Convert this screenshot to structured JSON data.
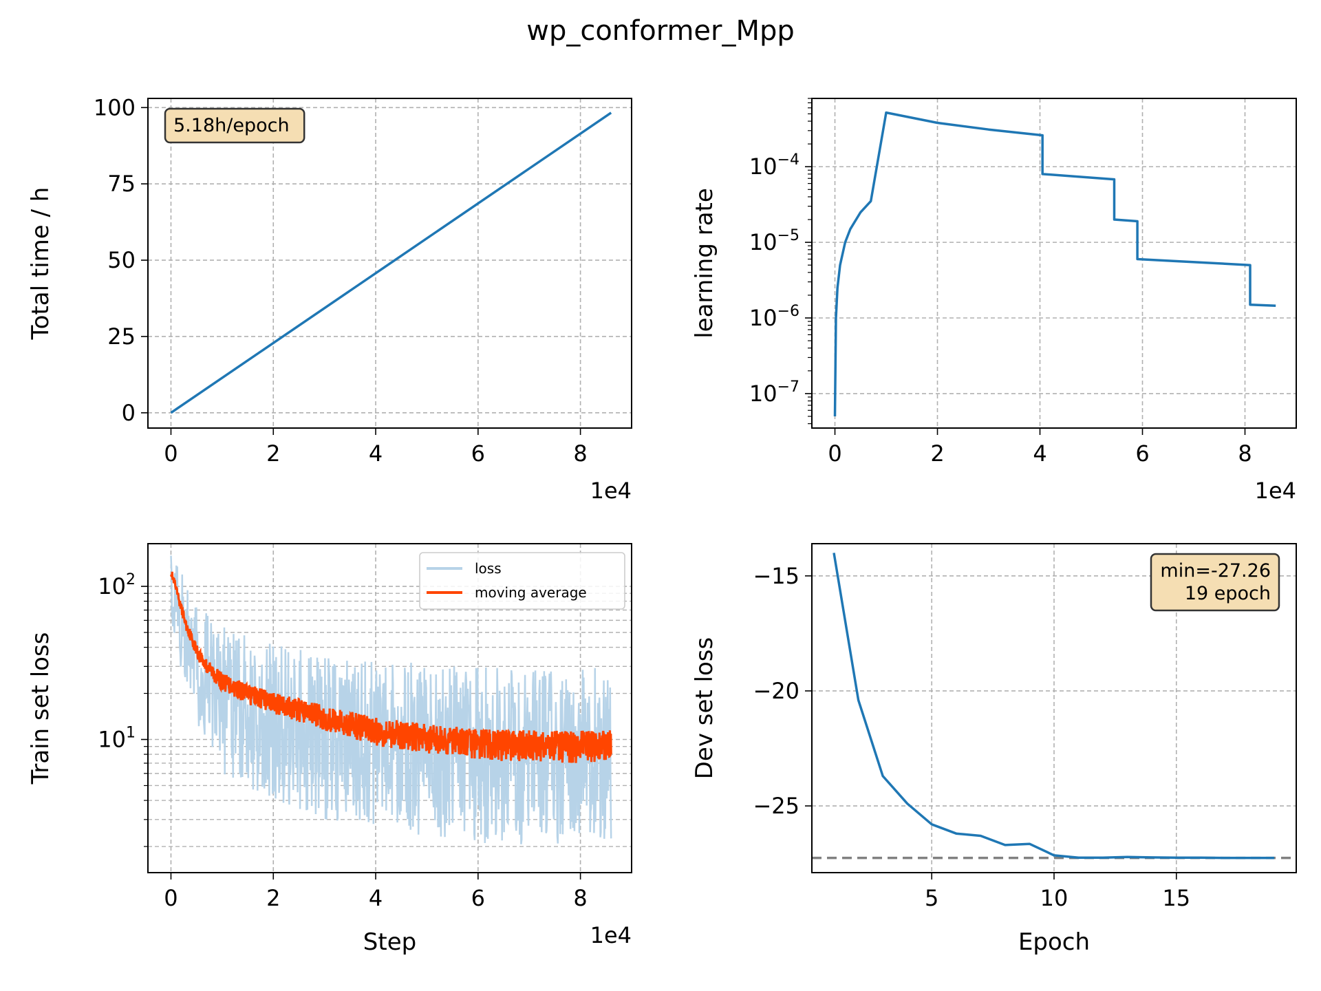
{
  "figure": {
    "title": "wp_conformer_Mpp"
  },
  "colors": {
    "line": "#1f77b4",
    "loss_raw": "#b7d3e8",
    "moving_average": "#ff4500",
    "annotation_bg": "#f5deb3",
    "grid": "#b0b0b0",
    "min_line": "#808080"
  },
  "chart_data": [
    {
      "id": "total-time",
      "type": "line",
      "xlabel": "",
      "ylabel": "Total time / h",
      "x_multiplier_label": "1e4",
      "x_ticks": [
        0,
        2,
        4,
        6,
        8
      ],
      "y_ticks": [
        0,
        25,
        50,
        75,
        100
      ],
      "xlim": [
        -0.45,
        9.0
      ],
      "ylim": [
        -5,
        103
      ],
      "grid": true,
      "annotation": "5.18h/epoch",
      "annotation_position": "top-left",
      "series": [
        {
          "x": [
            0,
            8.6
          ],
          "y": [
            0,
            98.3
          ]
        }
      ]
    },
    {
      "id": "learning-rate",
      "type": "line",
      "scale_y": "log",
      "xlabel": "",
      "ylabel": "learning rate",
      "x_multiplier_label": "1e4",
      "x_ticks": [
        0,
        2,
        4,
        6,
        8
      ],
      "y_ticks": [
        {
          "value": 1e-07,
          "base": "10",
          "exp": "−7"
        },
        {
          "value": 1e-06,
          "base": "10",
          "exp": "−6"
        },
        {
          "value": 1e-05,
          "base": "10",
          "exp": "−5"
        },
        {
          "value": 0.0001,
          "base": "10",
          "exp": "−4"
        }
      ],
      "xlim": [
        -0.45,
        9.0
      ],
      "ylim": [
        3.5e-08,
        0.0008
      ],
      "grid": true,
      "series": [
        {
          "x": [
            0.0,
            0.02,
            0.05,
            0.1,
            0.2,
            0.3,
            0.5,
            0.7,
            1.0,
            2.0,
            3.0,
            4.05,
            4.05,
            5.45,
            5.45,
            5.9,
            5.9,
            8.1,
            8.1,
            8.6
          ],
          "y": [
            5e-08,
            1e-06,
            2.5e-06,
            5e-06,
            1e-05,
            1.5e-05,
            2.5e-05,
            3.5e-05,
            0.00052,
            0.00038,
            0.00031,
            0.00026,
            8e-05,
            6.8e-05,
            2e-05,
            1.9e-05,
            6e-06,
            5e-06,
            1.5e-06,
            1.45e-06
          ]
        }
      ]
    },
    {
      "id": "train-loss",
      "type": "line",
      "scale_y": "log",
      "xlabel": "Step",
      "ylabel": "Train set loss",
      "x_multiplier_label": "1e4",
      "x_ticks": [
        0,
        2,
        4,
        6,
        8
      ],
      "y_ticks": [
        {
          "value": 10,
          "base": "10",
          "exp": "1"
        },
        {
          "value": 100,
          "base": "10",
          "exp": "2"
        }
      ],
      "xlim": [
        -0.45,
        9.0
      ],
      "ylim": [
        1.35,
        190
      ],
      "grid": true,
      "legend_position": "top-right",
      "series": [
        {
          "name": "loss",
          "x": [
            0,
            0.2,
            0.5,
            1.0,
            2.0,
            3.0,
            4.0,
            5.0,
            6.0,
            7.0,
            8.0,
            8.6
          ],
          "upper": [
            160,
            130,
            75,
            55,
            42,
            36,
            33,
            32,
            31,
            30,
            30,
            30
          ],
          "lower": [
            60,
            28,
            12,
            6,
            3.8,
            3.0,
            2.6,
            2.3,
            2.1,
            2.0,
            2.0,
            2.2
          ]
        },
        {
          "name": "moving average",
          "x": [
            0,
            0.1,
            0.2,
            0.3,
            0.5,
            0.7,
            1.0,
            1.5,
            2.0,
            3.0,
            4.0,
            5.0,
            6.0,
            7.0,
            8.0,
            8.6
          ],
          "y": [
            125,
            95,
            72,
            55,
            38,
            30,
            24,
            20,
            17.5,
            14,
            11.5,
            10.3,
            9.5,
            9.3,
            9.2,
            9.3
          ],
          "noise": [
            8,
            6,
            5,
            4.5,
            4,
            3.6,
            3.2,
            3,
            2.8,
            2.6,
            2.4,
            2.3,
            2.2,
            2.2,
            2.2,
            2.2
          ]
        }
      ]
    },
    {
      "id": "dev-loss",
      "type": "line",
      "xlabel": "Epoch",
      "ylabel": "Dev set loss",
      "x_ticks": [
        5,
        10,
        15
      ],
      "y_ticks": [
        -25,
        -20,
        -15
      ],
      "y_tick_labels": [
        "−25",
        "−20",
        "−15"
      ],
      "xlim": [
        0.1,
        19.9
      ],
      "ylim": [
        -27.9,
        -13.6
      ],
      "grid": true,
      "annotation": "min=-27.26\n19 epoch",
      "annotation_position": "top-right",
      "min_value": -27.26,
      "series": [
        {
          "x": [
            1,
            2,
            3,
            4,
            5,
            6,
            7,
            8,
            9,
            10,
            11,
            12,
            13,
            14,
            15,
            16,
            17,
            18,
            19
          ],
          "y": [
            -14.0,
            -20.4,
            -23.7,
            -24.9,
            -25.8,
            -26.2,
            -26.3,
            -26.7,
            -26.65,
            -27.15,
            -27.25,
            -27.25,
            -27.22,
            -27.24,
            -27.25,
            -27.25,
            -27.26,
            -27.26,
            -27.26
          ]
        }
      ]
    }
  ]
}
